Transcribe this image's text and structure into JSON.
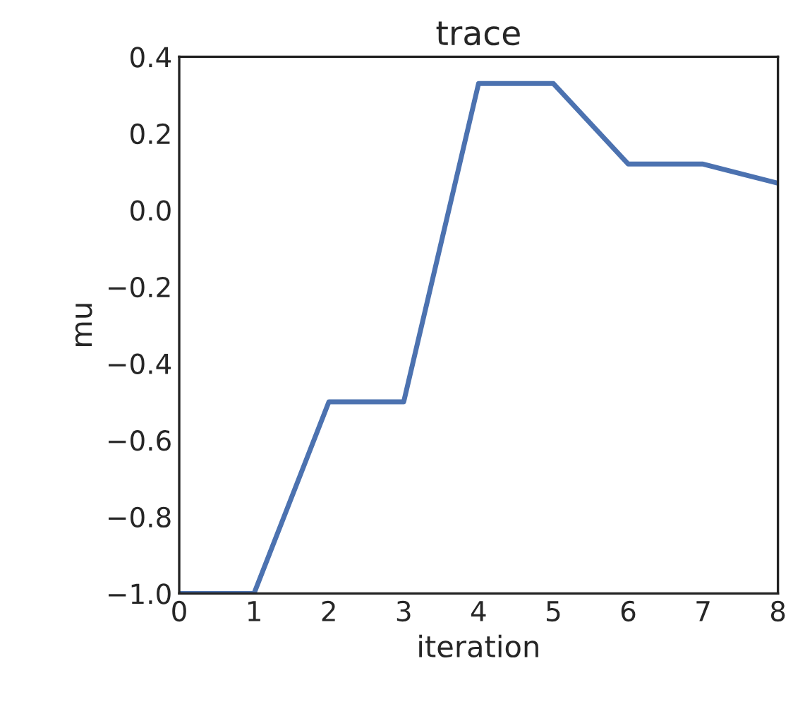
{
  "chart_data": {
    "type": "line",
    "title": "trace",
    "xlabel": "iteration",
    "ylabel": "mu",
    "x": [
      0,
      1,
      2,
      3,
      4,
      5,
      6,
      7,
      8
    ],
    "series": [
      {
        "color": "#4c72b0",
        "values": [
          -1.0,
          -1.0,
          -0.5,
          -0.5,
          0.33,
          0.33,
          0.12,
          0.12,
          0.07
        ]
      }
    ],
    "xlim": [
      0,
      8
    ],
    "xticks": [
      0,
      1,
      2,
      3,
      4,
      5,
      6,
      7,
      8
    ],
    "ylim": [
      -1.0,
      0.4
    ],
    "yticks": [
      {
        "value": -1.0,
        "label": "−1.0"
      },
      {
        "value": -0.8,
        "label": "−0.8"
      },
      {
        "value": -0.6,
        "label": "−0.6"
      },
      {
        "value": -0.4,
        "label": "−0.4"
      },
      {
        "value": -0.2,
        "label": "−0.2"
      },
      {
        "value": 0.0,
        "label": "0.0"
      },
      {
        "value": 0.2,
        "label": "0.2"
      },
      {
        "value": 0.4,
        "label": "0.4"
      }
    ],
    "grid": false,
    "legend": false
  }
}
